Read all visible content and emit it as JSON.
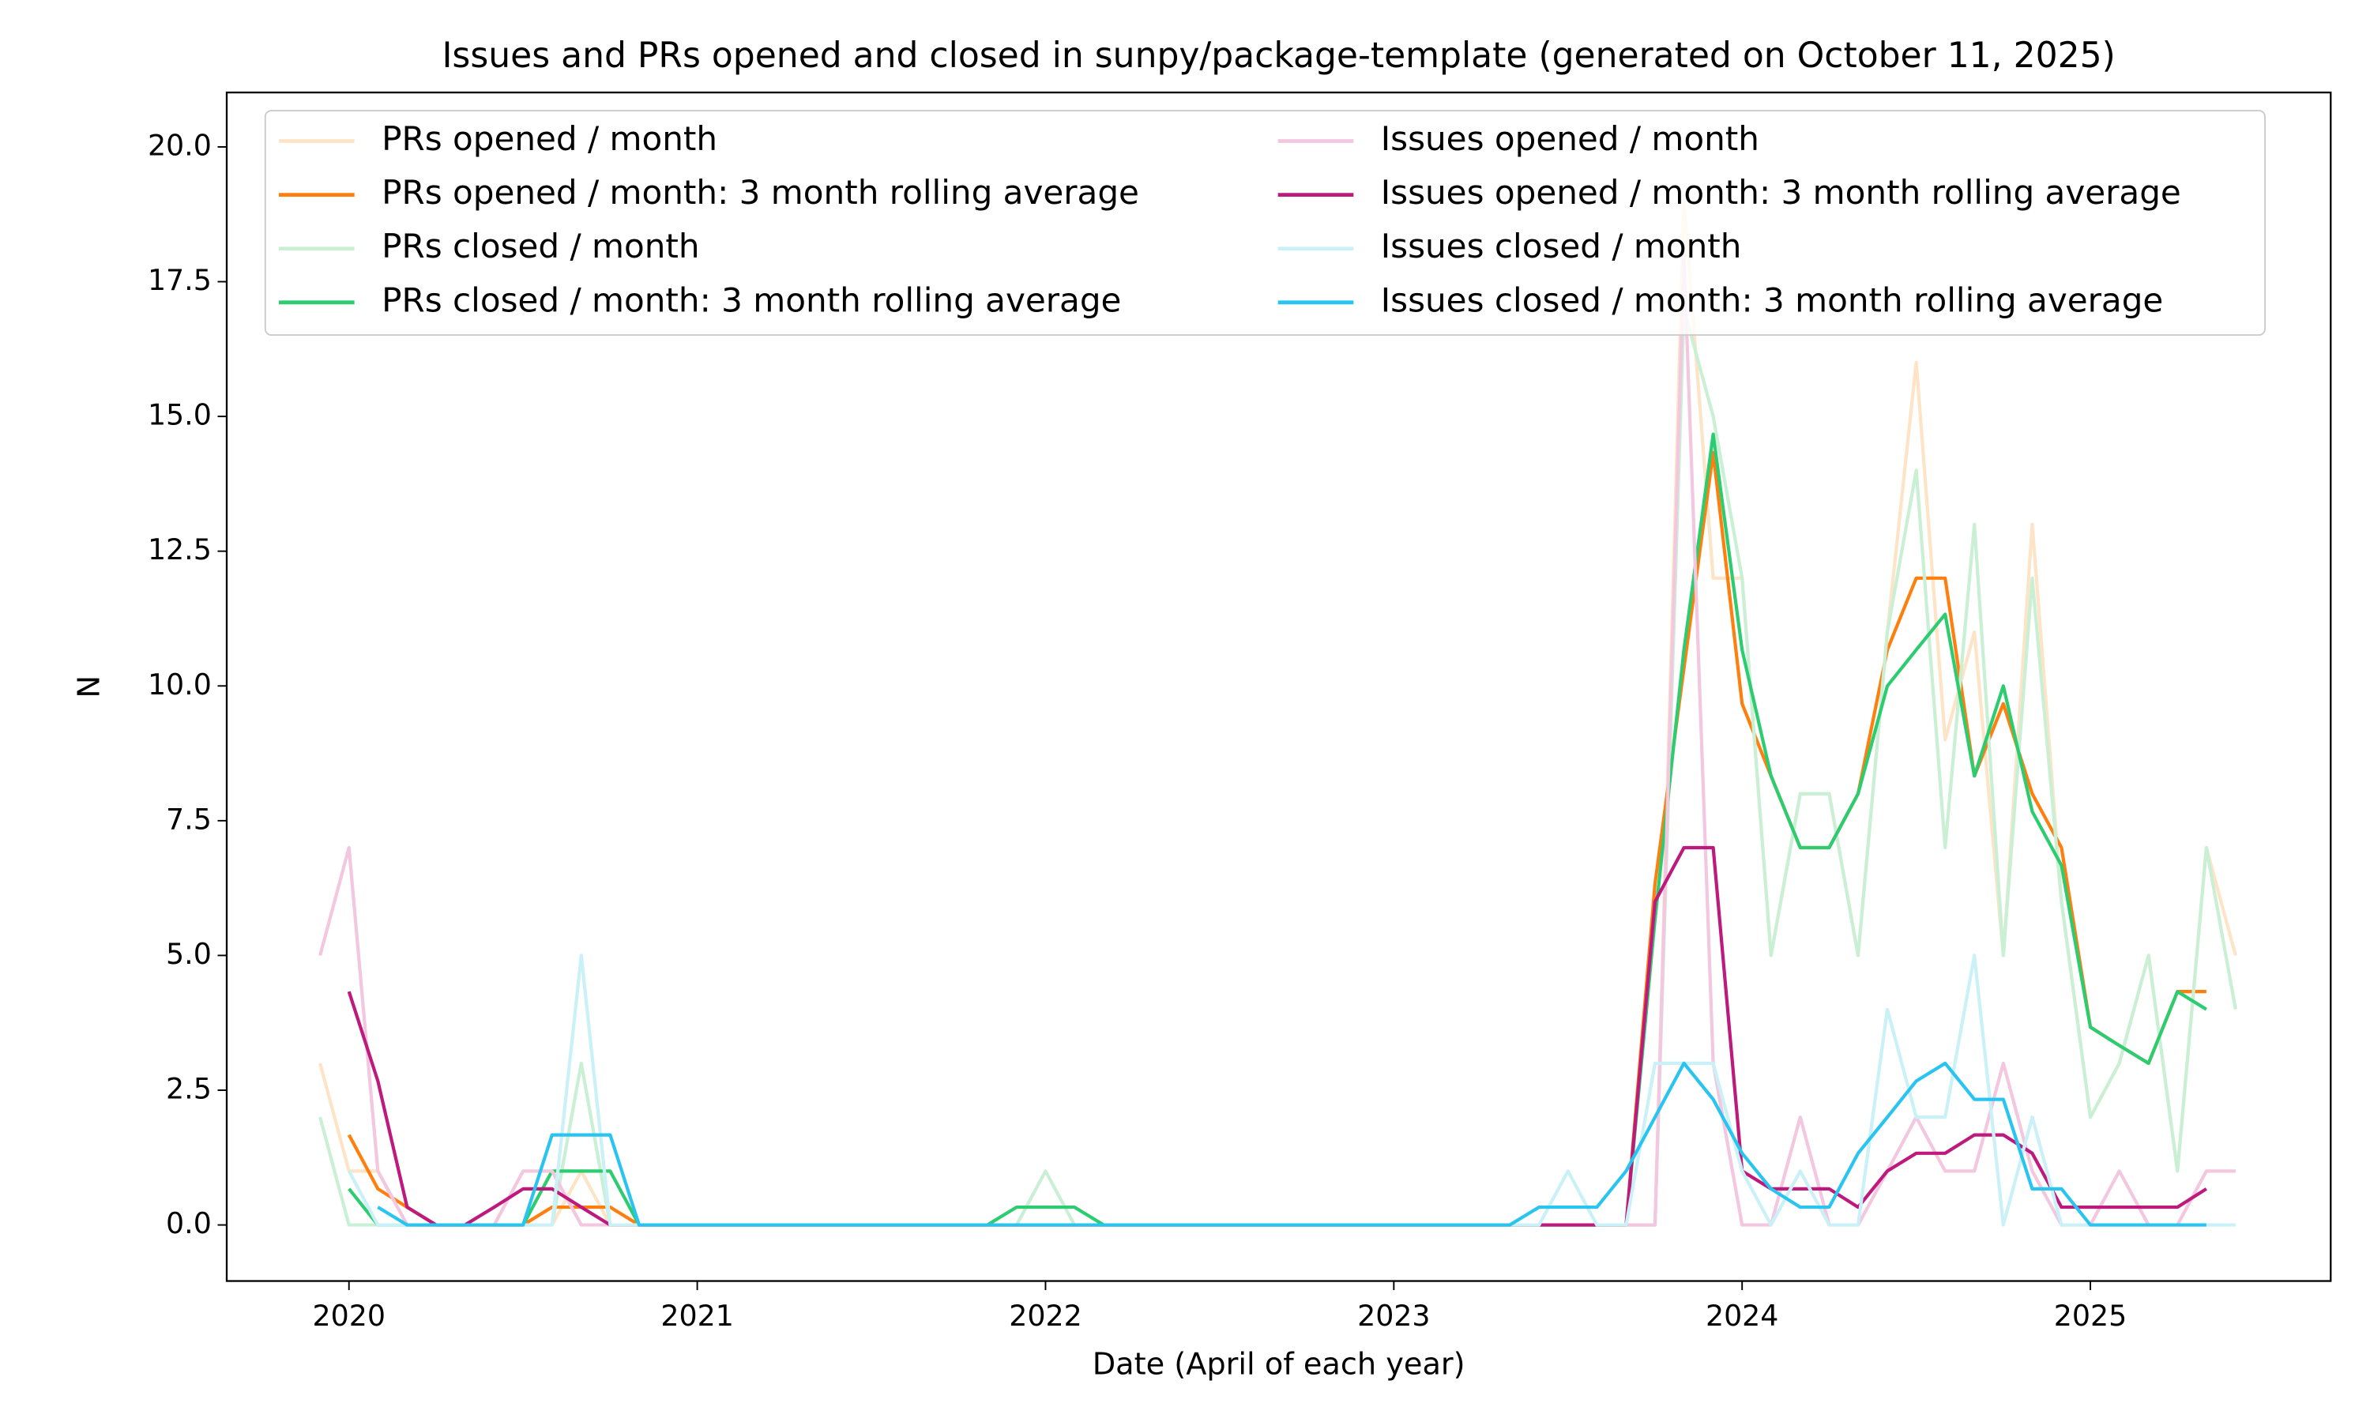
{
  "chart_data": {
    "type": "line",
    "title": "Issues and PRs opened and closed in sunpy/package-template (generated on October 11, 2025)",
    "x_label": "Date (April of each year)",
    "y_label": "N",
    "xlim": [
      2019.649,
      2025.69
    ],
    "ylim": [
      -1.04,
      21.01
    ],
    "xticks": [
      2020,
      2021,
      2022,
      2023,
      2024,
      2025
    ],
    "yticks": [
      {
        "value": 0,
        "label": "0.0"
      },
      {
        "value": 2.5,
        "label": "2.5"
      },
      {
        "value": 5,
        "label": "5.0"
      },
      {
        "value": 7.5,
        "label": "7.5"
      },
      {
        "value": 10,
        "label": "10.0"
      },
      {
        "value": 12.5,
        "label": "12.5"
      },
      {
        "value": 15,
        "label": "15.0"
      },
      {
        "value": 17.5,
        "label": "17.5"
      },
      {
        "value": 20,
        "label": "20.0"
      }
    ],
    "grid": false,
    "legend_loc": "upper center",
    "x": [
      2019.917,
      2020.0,
      2020.083,
      2020.167,
      2020.25,
      2020.333,
      2020.417,
      2020.5,
      2020.583,
      2020.667,
      2020.75,
      2020.833,
      2020.917,
      2021.0,
      2021.083,
      2021.167,
      2021.25,
      2021.333,
      2021.417,
      2021.5,
      2021.583,
      2021.667,
      2021.75,
      2021.833,
      2021.917,
      2022.0,
      2022.083,
      2022.167,
      2022.25,
      2022.333,
      2022.417,
      2022.5,
      2022.583,
      2022.667,
      2022.75,
      2022.833,
      2022.917,
      2023.0,
      2023.083,
      2023.167,
      2023.25,
      2023.333,
      2023.417,
      2023.5,
      2023.583,
      2023.667,
      2023.75,
      2023.833,
      2023.917,
      2024.0,
      2024.083,
      2024.167,
      2024.25,
      2024.333,
      2024.417,
      2024.5,
      2024.583,
      2024.667,
      2024.75,
      2024.833,
      2024.917,
      2025.0,
      2025.083,
      2025.167,
      2025.25,
      2025.333,
      2025.417
    ],
    "series": [
      {
        "name": "PRs opened / month",
        "color": "#fde4c6",
        "values": [
          3,
          1,
          1,
          0,
          0,
          0,
          0,
          0,
          0,
          1,
          0,
          0,
          0,
          0,
          0,
          0,
          0,
          0,
          0,
          0,
          0,
          0,
          0,
          0,
          0,
          0,
          0,
          0,
          0,
          0,
          0,
          0,
          0,
          0,
          0,
          0,
          0,
          0,
          0,
          0,
          0,
          0,
          0,
          0,
          0,
          0,
          0,
          19,
          12,
          12,
          5,
          8,
          8,
          5,
          11,
          16,
          9,
          11,
          5,
          13,
          6,
          2,
          3,
          5,
          1,
          7,
          5
        ]
      },
      {
        "name": "PRs opened / month: 3 month rolling average",
        "color": "#ff7f0e",
        "values": [
          null,
          1.67,
          0.67,
          0.33,
          0,
          0,
          0,
          0,
          0.33,
          0.33,
          0.33,
          0,
          0,
          0,
          0,
          0,
          0,
          0,
          0,
          0,
          0,
          0,
          0,
          0,
          0,
          0,
          0,
          0,
          0,
          0,
          0,
          0,
          0,
          0,
          0,
          0,
          0,
          0,
          0,
          0,
          0,
          0,
          0,
          0,
          0,
          0,
          6.33,
          10.33,
          14.33,
          9.67,
          8.33,
          7,
          7,
          8,
          10.67,
          12,
          12,
          8.33,
          9.67,
          8,
          7,
          3.67,
          3.33,
          3,
          4.33,
          4.33,
          null
        ]
      },
      {
        "name": "PRs closed / month",
        "color": "#c9f0d4",
        "values": [
          2,
          0,
          0,
          0,
          0,
          0,
          0,
          0,
          0,
          3,
          0,
          0,
          0,
          0,
          0,
          0,
          0,
          0,
          0,
          0,
          0,
          0,
          0,
          0,
          0,
          1,
          0,
          0,
          0,
          0,
          0,
          0,
          0,
          0,
          0,
          0,
          0,
          0,
          0,
          0,
          0,
          0,
          0,
          0,
          0,
          0,
          0,
          17,
          15,
          12,
          5,
          8,
          8,
          5,
          11,
          14,
          7,
          13,
          5,
          12,
          6,
          2,
          3,
          5,
          1,
          7,
          4
        ]
      },
      {
        "name": "PRs closed / month: 3 month rolling average",
        "color": "#2ecc71",
        "values": [
          null,
          0.67,
          0,
          0,
          0,
          0,
          0,
          0,
          1,
          1,
          1,
          0,
          0,
          0,
          0,
          0,
          0,
          0,
          0,
          0,
          0,
          0,
          0,
          0,
          0.33,
          0.33,
          0.33,
          0,
          0,
          0,
          0,
          0,
          0,
          0,
          0,
          0,
          0,
          0,
          0,
          0,
          0,
          0,
          0,
          0,
          0,
          0,
          5.67,
          10.67,
          14.67,
          10.67,
          8.33,
          7,
          7,
          8,
          10,
          10.67,
          11.33,
          8.33,
          10,
          7.67,
          6.67,
          3.67,
          3.33,
          3,
          4.33,
          4,
          null
        ]
      },
      {
        "name": "Issues opened / month",
        "color": "#f2c7df",
        "values": [
          5,
          7,
          1,
          0,
          0,
          0,
          0,
          1,
          1,
          0,
          0,
          0,
          0,
          0,
          0,
          0,
          0,
          0,
          0,
          0,
          0,
          0,
          0,
          0,
          0,
          0,
          0,
          0,
          0,
          0,
          0,
          0,
          0,
          0,
          0,
          0,
          0,
          0,
          0,
          0,
          0,
          0,
          0,
          0,
          0,
          0,
          0,
          18,
          3,
          0,
          0,
          2,
          0,
          0,
          1,
          2,
          1,
          1,
          3,
          1,
          0,
          0,
          1,
          0,
          0,
          1,
          1
        ]
      },
      {
        "name": "Issues opened / month: 3 month rolling average",
        "color": "#be1a7d",
        "values": [
          null,
          4.33,
          2.67,
          0.33,
          0,
          0,
          0.33,
          0.67,
          0.67,
          0.33,
          0,
          0,
          0,
          0,
          0,
          0,
          0,
          0,
          0,
          0,
          0,
          0,
          0,
          0,
          0,
          0,
          0,
          0,
          0,
          0,
          0,
          0,
          0,
          0,
          0,
          0,
          0,
          0,
          0,
          0,
          0,
          0,
          0,
          0,
          0,
          0,
          6,
          7,
          7,
          1,
          0.67,
          0.67,
          0.67,
          0.33,
          1,
          1.33,
          1.33,
          1.67,
          1.67,
          1.33,
          0.33,
          0.33,
          0.33,
          0.33,
          0.33,
          0.67,
          null
        ]
      },
      {
        "name": "Issues closed / month",
        "color": "#c9f1f7",
        "values": [
          null,
          1,
          0,
          0,
          0,
          0,
          0,
          0,
          0,
          5,
          0,
          0,
          0,
          0,
          0,
          0,
          0,
          0,
          0,
          0,
          0,
          0,
          0,
          0,
          0,
          0,
          0,
          0,
          0,
          0,
          0,
          0,
          0,
          0,
          0,
          0,
          0,
          0,
          0,
          0,
          0,
          0,
          0,
          1,
          0,
          0,
          3,
          3,
          3,
          1,
          0,
          1,
          0,
          0,
          4,
          2,
          2,
          5,
          0,
          2,
          0,
          0,
          0,
          0,
          0,
          0,
          0
        ]
      },
      {
        "name": "Issues closed / month: 3 month rolling average",
        "color": "#29c4f0",
        "values": [
          null,
          null,
          0.33,
          0,
          0,
          0,
          0,
          0,
          1.67,
          1.67,
          1.67,
          0,
          0,
          0,
          0,
          0,
          0,
          0,
          0,
          0,
          0,
          0,
          0,
          0,
          0,
          0,
          0,
          0,
          0,
          0,
          0,
          0,
          0,
          0,
          0,
          0,
          0,
          0,
          0,
          0,
          0,
          0,
          0.33,
          0.33,
          0.33,
          1,
          2,
          3,
          2.33,
          1.33,
          0.67,
          0.33,
          0.33,
          1.33,
          2,
          2.67,
          3,
          2.33,
          2.33,
          0.67,
          0.67,
          0,
          0,
          0,
          0,
          0,
          null
        ]
      }
    ]
  }
}
